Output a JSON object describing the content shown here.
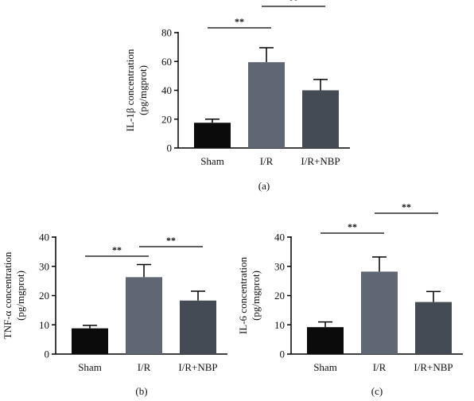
{
  "colors": {
    "Sham": "#0b0b0b",
    "I/R": "#5f6775",
    "I/R+NBP": "#444b54",
    "axis": "#000000"
  },
  "chart_data": [
    {
      "type": "bar",
      "panel_label": "(a)",
      "categories": [
        "Sham",
        "I/R",
        "I/R+NBP"
      ],
      "values": [
        17.5,
        59.5,
        40
      ],
      "errors": [
        2.5,
        10,
        7.5
      ],
      "ylabel_line1": "IL-1β concentration",
      "ylabel_line2": "(pg/mgprot)",
      "ylim": [
        0,
        80
      ],
      "yticks": [
        0,
        20,
        40,
        60,
        80
      ],
      "significance": [
        {
          "from": 0,
          "to": 1,
          "label": "**"
        },
        {
          "from": 1,
          "to": 2,
          "label": "**"
        }
      ]
    },
    {
      "type": "bar",
      "panel_label": "(b)",
      "categories": [
        "Sham",
        "I/R",
        "I/R+NBP"
      ],
      "values": [
        8.8,
        26.3,
        18.3
      ],
      "errors": [
        1.0,
        4.3,
        3.2
      ],
      "ylabel_line1": "TNF-α concentration",
      "ylabel_line2": "(pg/mgprot)",
      "ylim": [
        0,
        40
      ],
      "yticks": [
        0,
        10,
        20,
        30,
        40
      ],
      "significance": [
        {
          "from": 0,
          "to": 1,
          "label": "**"
        },
        {
          "from": 1,
          "to": 2,
          "label": "**"
        }
      ]
    },
    {
      "type": "bar",
      "panel_label": "(c)",
      "categories": [
        "Sham",
        "I/R",
        "I/R+NBP"
      ],
      "values": [
        9.2,
        28.2,
        17.8
      ],
      "errors": [
        1.8,
        5.0,
        3.6
      ],
      "ylabel_line1": "IL-6 concentration",
      "ylabel_line2": "(pg/mgprot)",
      "ylim": [
        0,
        40
      ],
      "yticks": [
        0,
        10,
        20,
        30,
        40
      ],
      "significance": [
        {
          "from": 0,
          "to": 1,
          "label": "**"
        },
        {
          "from": 1,
          "to": 2,
          "label": "**"
        }
      ]
    }
  ]
}
